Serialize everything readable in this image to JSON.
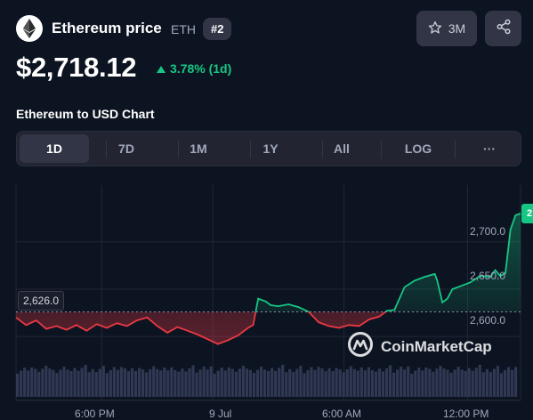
{
  "header": {
    "title": "Ethereum price",
    "symbol": "ETH",
    "rank": "#2",
    "watchlist_count": "3M"
  },
  "price": {
    "value": "$2,718.12",
    "change": "3.78% (1d)",
    "change_color": "#16c784"
  },
  "chart_section": {
    "title": "Ethereum to USD Chart",
    "tabs": [
      "1D",
      "7D",
      "1M",
      "1Y",
      "All",
      "LOG",
      "···"
    ],
    "active_tab": "1D"
  },
  "icons": {
    "logo": "ethereum-logo-icon",
    "watch": "star-icon",
    "share": "share-icon",
    "change": "triangle-up-icon",
    "watermark": "coinmarketcap-logo-icon"
  },
  "colors": {
    "background": "#0d1421",
    "up": "#16c784",
    "down": "#ea3943",
    "panel": "#222531",
    "button": "#323546"
  },
  "watermark_text": "CoinMarketCap",
  "current_price_tag": "2",
  "chart_data": {
    "type": "line",
    "reference_line": 2626.0,
    "reference_label": "2,626.0",
    "ylim": [
      2570,
      2760
    ],
    "y_ticks": [
      2600.0,
      2650.0,
      2700.0
    ],
    "y_tick_labels": [
      "2,600.0",
      "2,650.0",
      "2,700.0"
    ],
    "x_tick_labels": [
      "6:00 PM",
      "9 Jul",
      "6:00 AM",
      "12:00 PM"
    ],
    "x_range": [
      0,
      100
    ],
    "x_ticks": [
      17,
      39,
      65,
      89.5
    ],
    "series": [
      {
        "x": [
          0,
          2,
          4,
          6,
          8,
          10,
          12,
          14,
          16,
          18,
          20,
          22,
          24,
          26,
          28,
          30,
          32,
          34,
          36,
          38,
          40,
          42,
          44,
          46,
          47,
          48,
          49.5,
          50.5,
          52,
          54,
          56,
          58,
          60,
          62,
          64,
          66,
          68,
          70,
          72,
          73.5,
          75,
          77,
          79,
          81,
          83,
          83.5,
          84.5,
          85.5,
          86.5,
          88,
          90,
          92,
          94,
          95,
          96,
          97,
          98,
          99,
          100
        ],
        "y": [
          2620,
          2612,
          2617,
          2608,
          2611,
          2607,
          2612,
          2606,
          2613,
          2609,
          2614,
          2611,
          2617,
          2620,
          2611,
          2604,
          2610,
          2606,
          2602,
          2597,
          2592,
          2596,
          2601,
          2609,
          2612,
          2640,
          2637,
          2633,
          2632,
          2634,
          2631,
          2626,
          2615,
          2611,
          2609,
          2612,
          2611,
          2618,
          2621,
          2627,
          2628,
          2652,
          2659,
          2663,
          2666,
          2659,
          2636,
          2640,
          2650,
          2653,
          2657,
          2664,
          2663,
          2670,
          2664,
          2667,
          2713,
          2728,
          2730
        ]
      }
    ]
  }
}
